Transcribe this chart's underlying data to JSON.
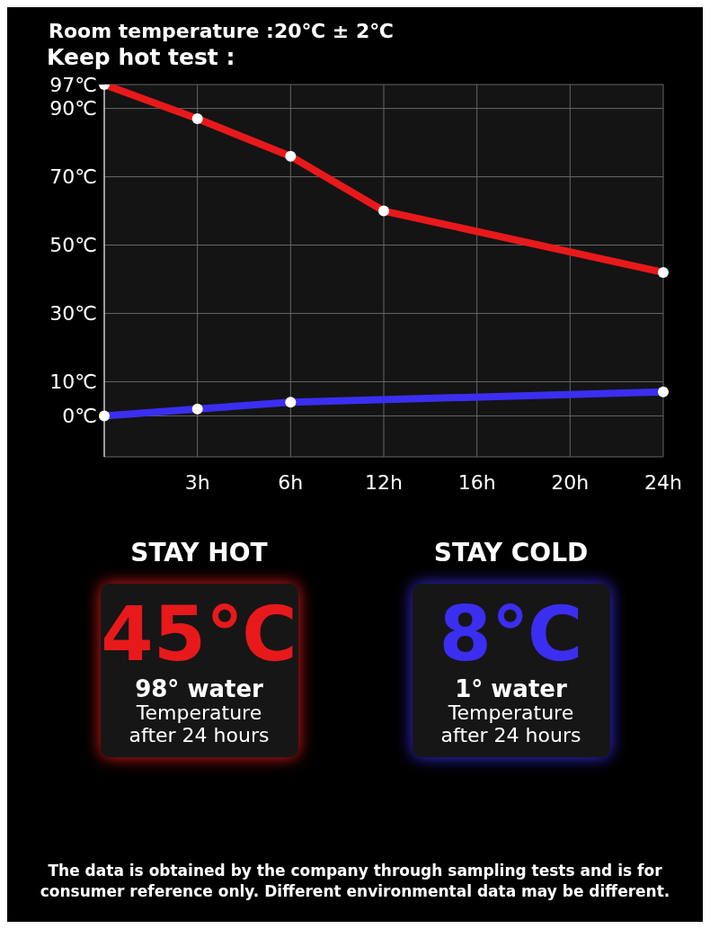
{
  "chart_data": {
    "type": "line",
    "title": "Room temperature :20℃ ± 2℃",
    "subtitle": "Keep hot test :",
    "categories": [
      null,
      "3h",
      "6h",
      "12h",
      "16h",
      "20h",
      "24h"
    ],
    "series": [
      {
        "color": "#e8191b",
        "values": [
          97,
          87,
          76,
          60,
          null,
          null,
          42
        ]
      },
      {
        "color": "#3b2ef0",
        "values": [
          0,
          2,
          4,
          null,
          null,
          null,
          7
        ]
      }
    ],
    "ylim": [
      -12,
      97
    ],
    "yticks": [
      {
        "value": 0,
        "label": "0℃"
      },
      {
        "value": 10,
        "label": "10℃"
      },
      {
        "value": 30,
        "label": "30℃"
      },
      {
        "value": 50,
        "label": "50℃"
      },
      {
        "value": 70,
        "label": "70℃"
      },
      {
        "value": 90,
        "label": "90℃"
      },
      {
        "value": 97,
        "label": "97℃"
      }
    ],
    "grid": true,
    "marker": "circle",
    "line_style": "solid",
    "legend": false,
    "annotations": [
      "STAY HOT",
      "45℃",
      "98° water",
      "Temperature after 24 hours",
      "STAY COLD",
      "8℃",
      "1° water",
      "Temperature after 24 hours",
      "The data is obtained by the company through sampling tests and is for consumer reference only. Different environmental data may be different."
    ]
  }
}
